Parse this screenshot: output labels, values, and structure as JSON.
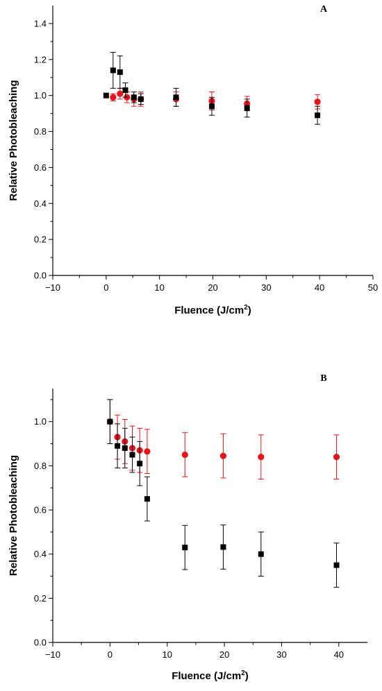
{
  "chart_data": [
    {
      "type": "scatter",
      "panel_label": "A",
      "xlabel": "Fluence (J/cm",
      "xlabel_sup": "2",
      "xlabel_end": ")",
      "ylabel": "Relative Photobleaching",
      "xlim": [
        -10,
        50
      ],
      "ylim": [
        0,
        1.5
      ],
      "x_ticks": [
        -10,
        0,
        10,
        20,
        30,
        40,
        50
      ],
      "x_tick_labels": [
        "−10",
        "0",
        "10",
        "20",
        "30",
        "40",
        "50"
      ],
      "y_ticks": [
        0,
        0.2,
        0.4,
        0.6,
        0.8,
        1.0,
        1.2,
        1.4
      ],
      "y_tick_labels": [
        "0.0",
        "0.2",
        "0.4",
        "0.6",
        "0.8",
        "1.0",
        "1.2",
        "1.4"
      ],
      "grid": false,
      "series": [
        {
          "marker": "square",
          "color": "#000000",
          "points": [
            {
              "x": 0,
              "y": 1.0,
              "err": 0
            },
            {
              "x": 1.3,
              "y": 1.14,
              "err": 0.1
            },
            {
              "x": 2.6,
              "y": 1.13,
              "err": 0.09
            },
            {
              "x": 3.6,
              "y": 1.03,
              "err": 0.04
            },
            {
              "x": 5.2,
              "y": 0.99,
              "err": 0.03
            },
            {
              "x": 6.5,
              "y": 0.98,
              "err": 0.03
            },
            {
              "x": 13.1,
              "y": 0.99,
              "err": 0.05
            },
            {
              "x": 19.8,
              "y": 0.94,
              "err": 0.05
            },
            {
              "x": 26.4,
              "y": 0.93,
              "err": 0.05
            },
            {
              "x": 39.6,
              "y": 0.89,
              "err": 0.05
            }
          ]
        },
        {
          "marker": "circle",
          "color": "#e8141b",
          "points": [
            {
              "x": 1.3,
              "y": 0.99,
              "err": 0.02
            },
            {
              "x": 2.6,
              "y": 1.01,
              "err": 0.03
            },
            {
              "x": 3.9,
              "y": 0.99,
              "err": 0.03
            },
            {
              "x": 5.2,
              "y": 0.98,
              "err": 0.04
            },
            {
              "x": 6.5,
              "y": 0.98,
              "err": 0.04
            },
            {
              "x": 13.1,
              "y": 0.98,
              "err": 0.04
            },
            {
              "x": 19.8,
              "y": 0.97,
              "err": 0.05
            },
            {
              "x": 26.4,
              "y": 0.955,
              "err": 0.04
            },
            {
              "x": 39.6,
              "y": 0.965,
              "err": 0.04
            }
          ]
        }
      ]
    },
    {
      "type": "scatter",
      "panel_label": "B",
      "xlabel": "Fluence (J/cm",
      "xlabel_sup": "2",
      "xlabel_end": ")",
      "ylabel": "Relative Photobleaching",
      "xlim": [
        -10,
        45
      ],
      "ylim": [
        0,
        1.15
      ],
      "x_ticks": [
        -10,
        0,
        10,
        20,
        30,
        40
      ],
      "x_tick_labels": [
        "−10",
        "0",
        "10",
        "20",
        "30",
        "40"
      ],
      "y_ticks": [
        0,
        0.2,
        0.4,
        0.6,
        0.8,
        1.0
      ],
      "y_tick_labels": [
        "0.0",
        "0.2",
        "0.4",
        "0.6",
        "0.8",
        "1.0"
      ],
      "grid": false,
      "series": [
        {
          "marker": "square",
          "color": "#000000",
          "points": [
            {
              "x": 0,
              "y": 1.0,
              "err": 0.1
            },
            {
              "x": 1.3,
              "y": 0.89,
              "err": 0.1
            },
            {
              "x": 2.6,
              "y": 0.88,
              "err": 0.09
            },
            {
              "x": 3.9,
              "y": 0.85,
              "err": 0.08
            },
            {
              "x": 5.2,
              "y": 0.81,
              "err": 0.1
            },
            {
              "x": 6.5,
              "y": 0.65,
              "err": 0.1
            },
            {
              "x": 13.1,
              "y": 0.43,
              "err": 0.1
            },
            {
              "x": 19.8,
              "y": 0.432,
              "err": 0.1
            },
            {
              "x": 26.4,
              "y": 0.4,
              "err": 0.1
            },
            {
              "x": 39.6,
              "y": 0.35,
              "err": 0.1
            }
          ]
        },
        {
          "marker": "circle",
          "color": "#e8141b",
          "points": [
            {
              "x": 0,
              "y": 1.0,
              "err": 0.1
            },
            {
              "x": 1.3,
              "y": 0.93,
              "err": 0.1
            },
            {
              "x": 2.6,
              "y": 0.91,
              "err": 0.1
            },
            {
              "x": 3.9,
              "y": 0.88,
              "err": 0.1
            },
            {
              "x": 5.2,
              "y": 0.87,
              "err": 0.1
            },
            {
              "x": 6.5,
              "y": 0.865,
              "err": 0.1
            },
            {
              "x": 13.1,
              "y": 0.85,
              "err": 0.1
            },
            {
              "x": 19.8,
              "y": 0.845,
              "err": 0.1
            },
            {
              "x": 26.4,
              "y": 0.84,
              "err": 0.1
            },
            {
              "x": 39.6,
              "y": 0.84,
              "err": 0.1
            }
          ]
        }
      ]
    }
  ]
}
